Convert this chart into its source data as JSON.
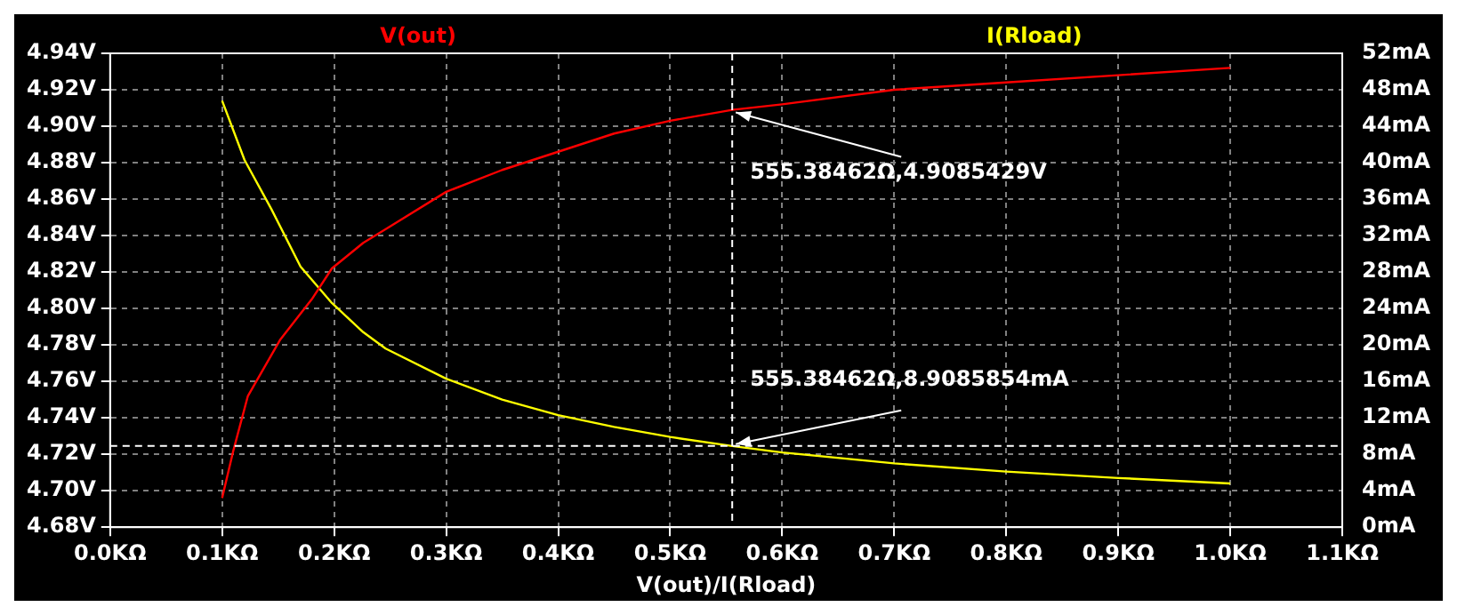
{
  "chart_data": {
    "type": "line",
    "xlabel": "V(out)/I(Rload)",
    "xlim": [
      0,
      1.1
    ],
    "xticks": [
      {
        "value": 0,
        "label": "0.0KΩ"
      },
      {
        "value": 0.1,
        "label": "0.1KΩ"
      },
      {
        "value": 0.2,
        "label": "0.2KΩ"
      },
      {
        "value": 0.3,
        "label": "0.3KΩ"
      },
      {
        "value": 0.4,
        "label": "0.4KΩ"
      },
      {
        "value": 0.5,
        "label": "0.5KΩ"
      },
      {
        "value": 0.6,
        "label": "0.6KΩ"
      },
      {
        "value": 0.7,
        "label": "0.7KΩ"
      },
      {
        "value": 0.8,
        "label": "0.8KΩ"
      },
      {
        "value": 0.9,
        "label": "0.9KΩ"
      },
      {
        "value": 1.0,
        "label": "1.0KΩ"
      },
      {
        "value": 1.1,
        "label": "1.1KΩ"
      }
    ],
    "ylim": [
      4.68,
      4.94
    ],
    "yticks": [
      {
        "value": 4.68,
        "label": "4.68V"
      },
      {
        "value": 4.7,
        "label": "4.70V"
      },
      {
        "value": 4.72,
        "label": "4.72V"
      },
      {
        "value": 4.74,
        "label": "4.74V"
      },
      {
        "value": 4.76,
        "label": "4.76V"
      },
      {
        "value": 4.78,
        "label": "4.78V"
      },
      {
        "value": 4.8,
        "label": "4.80V"
      },
      {
        "value": 4.82,
        "label": "4.82V"
      },
      {
        "value": 4.84,
        "label": "4.84V"
      },
      {
        "value": 4.86,
        "label": "4.86V"
      },
      {
        "value": 4.88,
        "label": "4.88V"
      },
      {
        "value": 4.9,
        "label": "4.90V"
      },
      {
        "value": 4.92,
        "label": "4.92V"
      },
      {
        "value": 4.94,
        "label": "4.94V"
      }
    ],
    "y2lim": [
      0,
      52
    ],
    "y2ticks": [
      {
        "value": 0,
        "label": "0mA"
      },
      {
        "value": 4,
        "label": "4mA"
      },
      {
        "value": 8,
        "label": "8mA"
      },
      {
        "value": 12,
        "label": "12mA"
      },
      {
        "value": 16,
        "label": "16mA"
      },
      {
        "value": 20,
        "label": "20mA"
      },
      {
        "value": 24,
        "label": "24mA"
      },
      {
        "value": 28,
        "label": "28mA"
      },
      {
        "value": 32,
        "label": "32mA"
      },
      {
        "value": 36,
        "label": "36mA"
      },
      {
        "value": 40,
        "label": "40mA"
      },
      {
        "value": 44,
        "label": "44mA"
      },
      {
        "value": 48,
        "label": "48mA"
      },
      {
        "value": 52,
        "label": "52mA"
      }
    ],
    "grid": true,
    "legend": "top",
    "marker": "none",
    "line_style": "solid",
    "series": [
      {
        "name": "V(out)",
        "color": "#ff0000",
        "x": [
          0.1,
          0.11,
          0.123,
          0.152,
          0.18,
          0.198,
          0.226,
          0.25,
          0.3,
          0.35,
          0.4,
          0.45,
          0.5,
          0.5554,
          0.6,
          0.7,
          0.8,
          0.9,
          1.0
        ],
        "values": [
          4.696,
          4.722,
          4.752,
          4.783,
          4.805,
          4.822,
          4.836,
          4.845,
          4.864,
          4.876,
          4.886,
          4.896,
          4.903,
          4.909,
          4.912,
          4.92,
          4.924,
          4.928,
          4.932
        ]
      },
      {
        "name": "I(Rload)",
        "color": "#ffff00",
        "axis": "y2",
        "x": [
          0.1,
          0.12,
          0.144,
          0.17,
          0.198,
          0.226,
          0.246,
          0.3,
          0.35,
          0.4,
          0.45,
          0.5,
          0.5554,
          0.6,
          0.7,
          0.8,
          0.9,
          1.0
        ],
        "values": [
          46.8,
          40.3,
          34.9,
          28.6,
          24.6,
          21.4,
          19.6,
          16.3,
          14.0,
          12.3,
          11.0,
          9.9,
          8.91,
          8.2,
          7.0,
          6.1,
          5.4,
          4.8
        ]
      }
    ],
    "ref_lines": [
      {
        "axis": "x",
        "value": 0.55538462,
        "color": "#ffffff",
        "line_style": "dashed"
      },
      {
        "axis": "y2",
        "value": 8.91,
        "color": "#ffffff",
        "line_style": "dashed"
      }
    ],
    "annotations": [
      {
        "text": "555.38462Ω,4.9085429V",
        "x": 0.55538462,
        "y": 4.9085429
      },
      {
        "text": "555.38462Ω,8.9085854mA",
        "x": 0.5554
      }
    ]
  }
}
